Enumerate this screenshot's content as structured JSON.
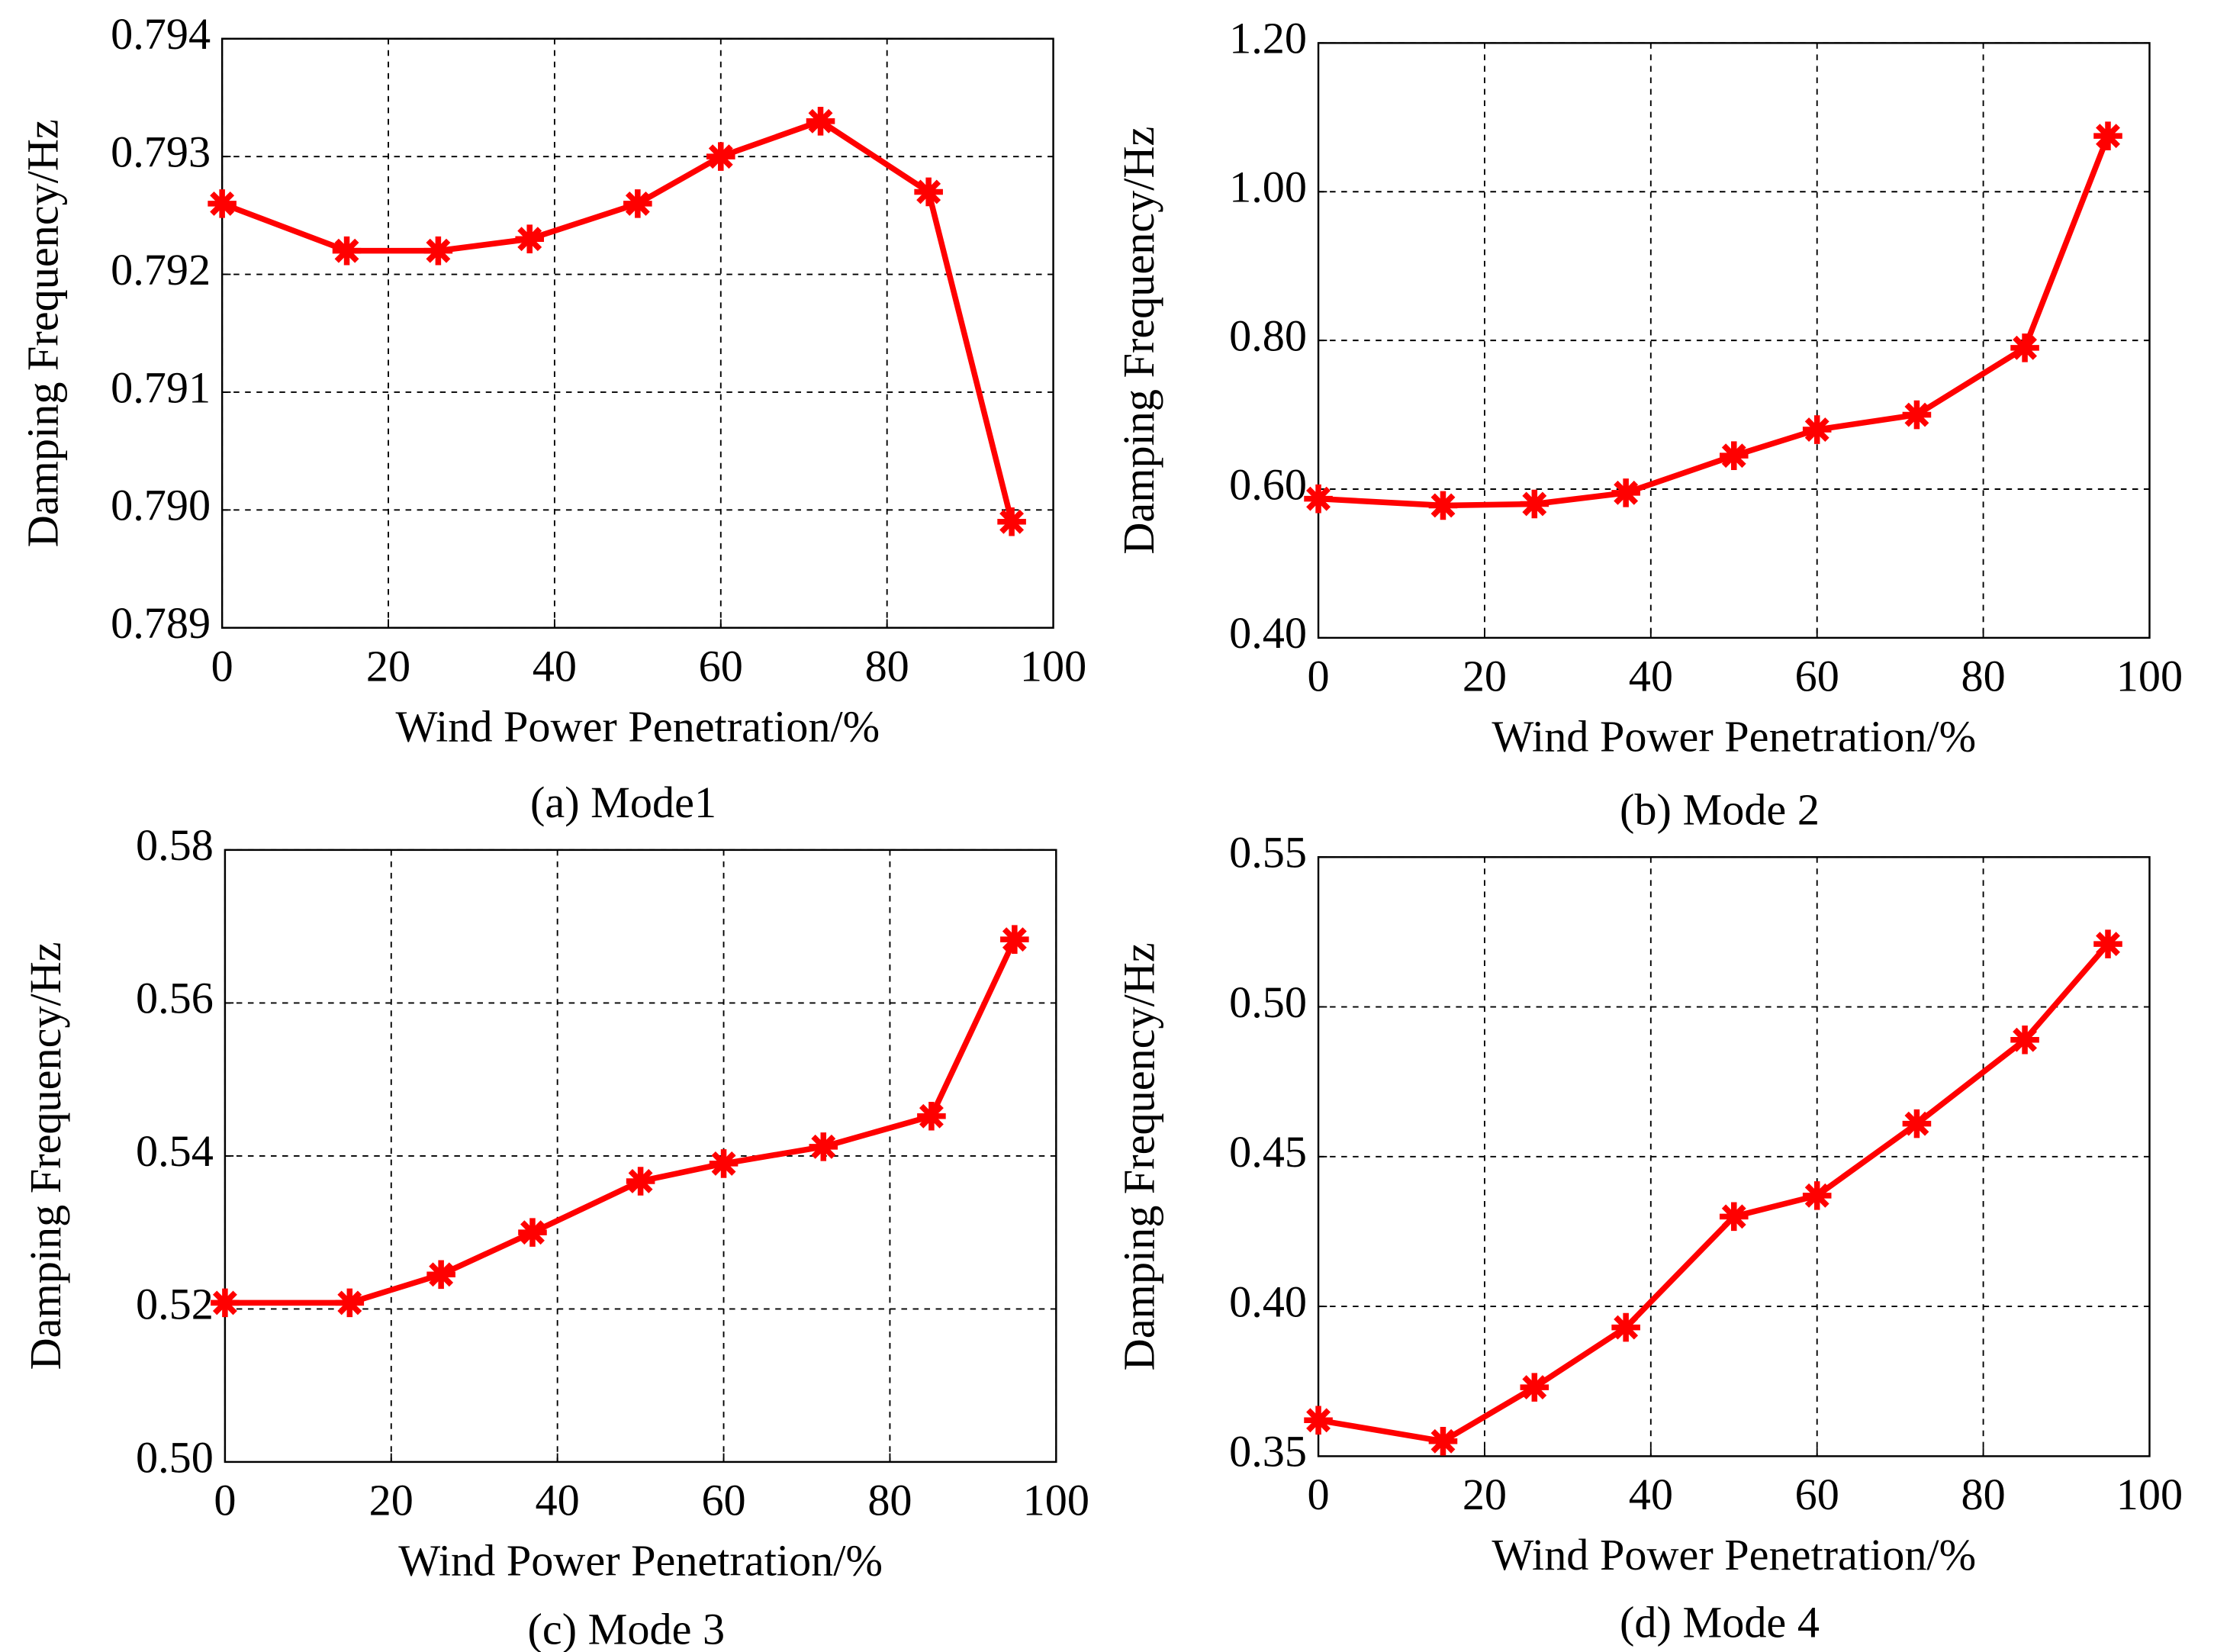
{
  "chart_data": [
    {
      "type": "line",
      "title": "(a) Mode1",
      "xlabel": "Wind Power Penetration/%",
      "ylabel": "Damping Frequency/Hz",
      "x": [
        0,
        15,
        26,
        37,
        50,
        60,
        72,
        85,
        95
      ],
      "series": [
        {
          "color": "#ff0000",
          "values": [
            0.7926,
            0.7922,
            0.7922,
            0.7923,
            0.7926,
            0.793,
            0.7933,
            0.7927,
            0.7899
          ]
        }
      ],
      "xlim": [
        0,
        100
      ],
      "xticks": [
        0,
        20,
        40,
        60,
        80,
        100
      ],
      "ylim": [
        0.789,
        0.794
      ],
      "yticks": [
        0.789,
        {
          "value": 0.79,
          "label": "0.790"
        },
        0.791,
        0.792,
        0.793,
        0.794
      ],
      "grid": true
    },
    {
      "type": "line",
      "title": "(b) Mode 2",
      "xlabel": "Wind Power Penetration/%",
      "ylabel": "Damping Frequency/Hz",
      "x": [
        0,
        15,
        26,
        37,
        50,
        60,
        72,
        85,
        95
      ],
      "series": [
        {
          "color": "#ff0000",
          "values": [
            0.587,
            0.578,
            0.58,
            0.595,
            0.645,
            0.68,
            0.7,
            0.79,
            1.075
          ]
        }
      ],
      "xlim": [
        0,
        100
      ],
      "xticks": [
        0,
        20,
        40,
        60,
        80,
        100
      ],
      "ylim": [
        0.4,
        1.2
      ],
      "yticks": [
        {
          "value": 0.4,
          "label": "0.40"
        },
        {
          "value": 0.6,
          "label": "0.60"
        },
        {
          "value": 0.8,
          "label": "0.80"
        },
        {
          "value": 1.0,
          "label": "1.00"
        },
        {
          "value": 1.2,
          "label": "1.20"
        }
      ],
      "grid": true
    },
    {
      "type": "line",
      "title": "(c) Mode 3",
      "xlabel": "Wind Power Penetration/%",
      "ylabel": "Damping Frequency/Hz",
      "x": [
        0,
        15,
        26,
        37,
        50,
        60,
        72,
        85,
        95
      ],
      "series": [
        {
          "color": "#ff0000",
          "values": [
            0.5208,
            0.5208,
            0.5245,
            0.53,
            0.5367,
            0.539,
            0.5412,
            0.5452,
            0.5683
          ]
        }
      ],
      "xlim": [
        0,
        100
      ],
      "xticks": [
        0,
        20,
        40,
        60,
        80,
        100
      ],
      "ylim": [
        0.5,
        0.58
      ],
      "yticks": [
        {
          "value": 0.5,
          "label": "0.50"
        },
        0.52,
        0.54,
        0.56,
        0.58
      ],
      "grid": true
    },
    {
      "type": "line",
      "title": "(d) Mode 4",
      "xlabel": "Wind Power Penetration/%",
      "ylabel": "Damping Frequency/Hz",
      "x": [
        0,
        15,
        26,
        37,
        50,
        60,
        72,
        85,
        95
      ],
      "series": [
        {
          "color": "#ff0000",
          "values": [
            0.362,
            0.355,
            0.373,
            0.393,
            0.43,
            0.437,
            0.461,
            0.489,
            0.521
          ]
        }
      ],
      "xlim": [
        0,
        100
      ],
      "xticks": [
        0,
        20,
        40,
        60,
        80,
        100
      ],
      "ylim": [
        0.35,
        0.55
      ],
      "yticks": [
        0.35,
        {
          "value": 0.4,
          "label": "0.40"
        },
        0.45,
        {
          "value": 0.5,
          "label": "0.50"
        },
        0.55
      ],
      "grid": true
    }
  ]
}
